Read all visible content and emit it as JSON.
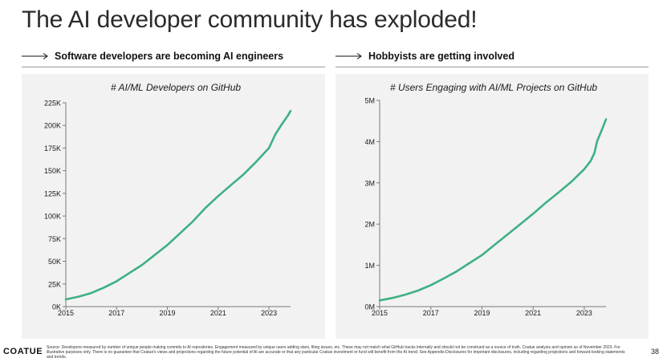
{
  "slide": {
    "title": "The AI developer community has exploded!",
    "page_number": "38",
    "logo": "COATUE",
    "source_note": "Source: Developers measured by number of unique people making commits to AI repositories. Engagement measured by unique users adding stars, filing issues, etc. These may not match what GitHub tracks internally and should not be construed as a source of truth. Coatue analysis and opinion as of November 2023. For illustrative purposes only. There is no guarantee that Coatue's views and projections regarding the future potential of AI are accurate or that any particular Coatue investment or fund will benefit from the AI trend. See Appendix-Disclosures for important disclosures, including regarding projections and forward-looking statements and trends."
  },
  "sections": [
    {
      "heading": "Software developers are becoming AI engineers"
    },
    {
      "heading": "Hobbyists are getting involved"
    }
  ],
  "colors": {
    "line": "#3fb083",
    "panel_bg": "#f2f2f2",
    "axis": "#7a7a7a",
    "text": "#1a1a1a"
  },
  "chart_data": [
    {
      "type": "line",
      "title": "# AI/ML Developers on GitHub",
      "xlabel": "",
      "ylabel": "",
      "xlim": [
        2015,
        2023.85
      ],
      "ylim": [
        0,
        225000
      ],
      "x_ticks": [
        "2015",
        "2017",
        "2019",
        "2021",
        "2023"
      ],
      "x_tick_values": [
        2015,
        2017,
        2019,
        2021,
        2023
      ],
      "y_ticks": [
        "0K",
        "25K",
        "50K",
        "75K",
        "100K",
        "125K",
        "150K",
        "175K",
        "200K",
        "225K"
      ],
      "y_tick_values": [
        0,
        25000,
        50000,
        75000,
        100000,
        125000,
        150000,
        175000,
        200000,
        225000
      ],
      "grid": false,
      "series": [
        {
          "x": [
            2015,
            2015.5,
            2016,
            2016.5,
            2017,
            2017.5,
            2018,
            2018.5,
            2019,
            2019.5,
            2020,
            2020.5,
            2021,
            2021.5,
            2022,
            2022.5,
            2023,
            2023.25,
            2023.5,
            2023.75,
            2023.85
          ],
          "values": [
            8000,
            11000,
            15000,
            21000,
            28000,
            37000,
            46000,
            57000,
            68000,
            81000,
            94000,
            109000,
            122000,
            134000,
            146000,
            160000,
            175000,
            190000,
            201000,
            211000,
            216000
          ]
        }
      ]
    },
    {
      "type": "line",
      "title": "# Users Engaging with AI/ML Projects on GitHub",
      "xlabel": "",
      "ylabel": "",
      "xlim": [
        2015,
        2023.85
      ],
      "ylim": [
        0,
        5000000
      ],
      "x_ticks": [
        "2015",
        "2017",
        "2019",
        "2021",
        "2023"
      ],
      "x_tick_values": [
        2015,
        2017,
        2019,
        2021,
        2023
      ],
      "y_ticks": [
        "0M",
        "1M",
        "2M",
        "3M",
        "4M",
        "5M"
      ],
      "y_tick_values": [
        0,
        1000000,
        2000000,
        3000000,
        4000000,
        5000000
      ],
      "grid": false,
      "series": [
        {
          "x": [
            2015,
            2015.5,
            2016,
            2016.5,
            2017,
            2017.5,
            2018,
            2018.5,
            2019,
            2019.5,
            2020,
            2020.5,
            2021,
            2021.5,
            2022,
            2022.5,
            2023,
            2023.25,
            2023.4,
            2023.5,
            2023.75,
            2023.85
          ],
          "values": [
            150000,
            210000,
            290000,
            390000,
            520000,
            680000,
            850000,
            1050000,
            1250000,
            1500000,
            1750000,
            2000000,
            2250000,
            2520000,
            2770000,
            3030000,
            3330000,
            3530000,
            3730000,
            4000000,
            4380000,
            4540000
          ]
        }
      ]
    }
  ]
}
